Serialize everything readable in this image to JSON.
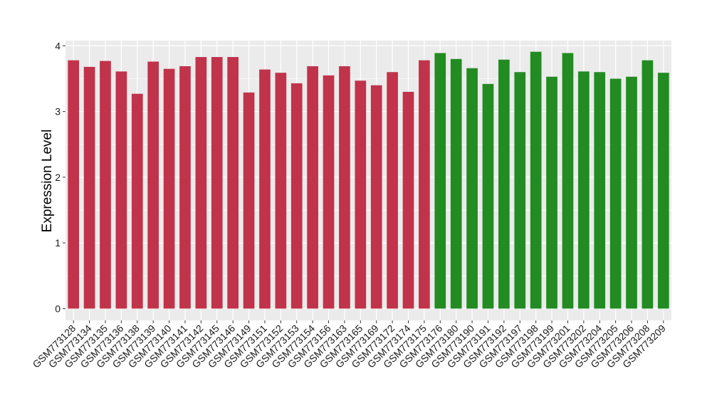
{
  "chart_data": {
    "type": "bar",
    "title": "",
    "xlabel": "",
    "ylabel": "Expression Level",
    "ylim": [
      -0.18,
      4.08
    ],
    "yticks": [
      0,
      1,
      2,
      3,
      4
    ],
    "grid": true,
    "legend": "none",
    "categories": [
      "GSM773128",
      "GSM773134",
      "GSM773135",
      "GSM773136",
      "GSM773138",
      "GSM773139",
      "GSM773140",
      "GSM773141",
      "GSM773142",
      "GSM773145",
      "GSM773146",
      "GSM773149",
      "GSM773151",
      "GSM773152",
      "GSM773153",
      "GSM773154",
      "GSM773156",
      "GSM773163",
      "GSM773165",
      "GSM773169",
      "GSM773172",
      "GSM773174",
      "GSM773175",
      "GSM773176",
      "GSM773180",
      "GSM773190",
      "GSM773191",
      "GSM773192",
      "GSM773197",
      "GSM773198",
      "GSM773199",
      "GSM773201",
      "GSM773202",
      "GSM773204",
      "GSM773205",
      "GSM773206",
      "GSM773208",
      "GSM773209"
    ],
    "values": [
      3.78,
      3.68,
      3.77,
      3.61,
      3.27,
      3.76,
      3.65,
      3.69,
      3.83,
      3.83,
      3.83,
      3.29,
      3.64,
      3.59,
      3.43,
      3.69,
      3.55,
      3.69,
      3.47,
      3.4,
      3.6,
      3.3,
      3.78,
      3.89,
      3.8,
      3.66,
      3.42,
      3.79,
      3.6,
      3.91,
      3.53,
      3.89,
      3.61,
      3.6,
      3.5,
      3.53,
      3.78,
      3.59
    ],
    "group_sizes": [
      23,
      15
    ],
    "colors": [
      "#c1334a",
      "#228b22"
    ]
  },
  "style": {
    "panel_bg": "#ebebeb",
    "grid_color": "#ffffff"
  }
}
